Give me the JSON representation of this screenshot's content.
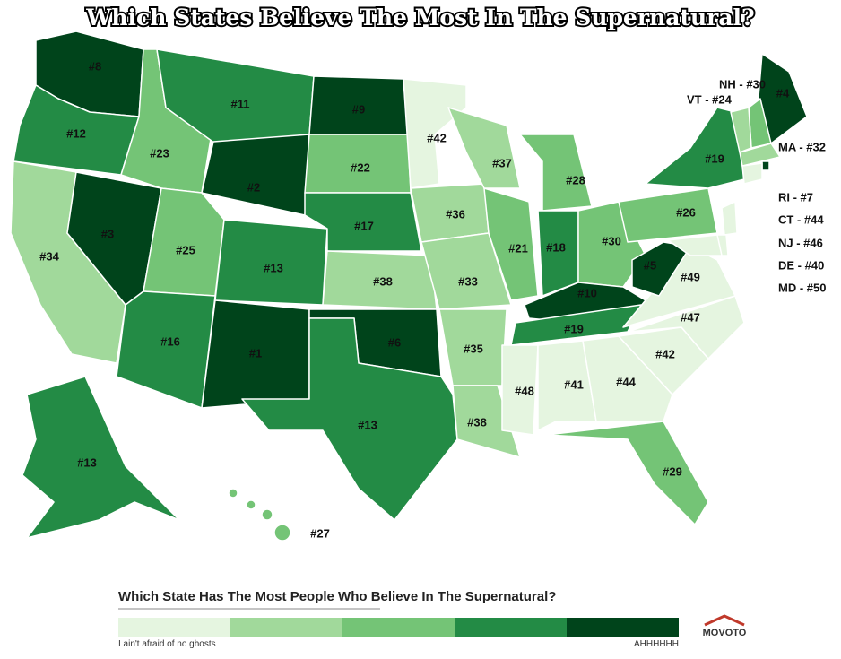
{
  "title": "Which States Believe The Most In The Supernatural?",
  "states": [
    {
      "label": "#8",
      "color": "#00441b"
    },
    {
      "label": "#12",
      "color": "#238b45"
    },
    {
      "label": "#34",
      "color": "#a1d99b"
    },
    {
      "label": "#3",
      "color": "#00441b"
    },
    {
      "label": "#23",
      "color": "#74c476"
    },
    {
      "label": "#11",
      "color": "#238b45"
    },
    {
      "label": "#2",
      "color": "#00441b"
    },
    {
      "label": "#25",
      "color": "#74c476"
    },
    {
      "label": "#13",
      "color": "#238b45"
    },
    {
      "label": "#16",
      "color": "#238b45"
    },
    {
      "label": "#1",
      "color": "#00441b"
    },
    {
      "label": "#9",
      "color": "#00441b"
    },
    {
      "label": "#22",
      "color": "#74c476"
    },
    {
      "label": "#17",
      "color": "#238b45"
    },
    {
      "label": "#38",
      "color": "#a1d99b"
    },
    {
      "label": "#6",
      "color": "#00441b"
    },
    {
      "label": "#13",
      "color": "#238b45"
    },
    {
      "label": "#42",
      "color": "#e5f5e0"
    },
    {
      "label": "#36",
      "color": "#a1d99b"
    },
    {
      "label": "#33",
      "color": "#a1d99b"
    },
    {
      "label": "#35",
      "color": "#a1d99b"
    },
    {
      "label": "#38",
      "color": "#a1d99b"
    },
    {
      "label": "#37",
      "color": "#a1d99b"
    },
    {
      "label": "#21",
      "color": "#74c476"
    },
    {
      "label": "#28",
      "color": "#74c476"
    },
    {
      "label": "#18",
      "color": "#238b45"
    },
    {
      "label": "#30",
      "color": "#74c476"
    },
    {
      "label": "#10",
      "color": "#00441b"
    },
    {
      "label": "#19",
      "color": "#238b45"
    },
    {
      "label": "#48",
      "color": "#e5f5e0"
    },
    {
      "label": "#41",
      "color": "#e5f5e0"
    },
    {
      "label": "#44",
      "color": "#e5f5e0"
    },
    {
      "label": "#29",
      "color": "#74c476"
    },
    {
      "label": "#42",
      "color": "#e5f5e0"
    },
    {
      "label": "#47",
      "color": "#e5f5e0"
    },
    {
      "label": "#49",
      "color": "#e5f5e0"
    },
    {
      "label": "#5",
      "color": "#00441b"
    },
    {
      "label": "#26",
      "color": "#74c476"
    },
    {
      "label": "#19",
      "color": "#238b45"
    },
    {
      "label": "#4",
      "color": "#00441b"
    },
    {
      "label": "#13",
      "color": "#238b45"
    },
    {
      "label": "#27",
      "color": "#74c476"
    }
  ],
  "callouts": [
    {
      "label": "NH - #30",
      "color": "#74c476"
    },
    {
      "label": "VT - #24",
      "color": "#a1d99b"
    },
    {
      "label": "MA - #32",
      "color": "#a1d99b"
    },
    {
      "label": "RI - #7",
      "color": "#00441b"
    },
    {
      "label": "CT - #44",
      "color": "#e5f5e0"
    },
    {
      "label": "NJ - #46",
      "color": "#e5f5e0"
    },
    {
      "label": "DE - #40",
      "color": "#e5f5e0"
    },
    {
      "label": "MD - #50",
      "color": "#e5f5e0"
    }
  ],
  "legend": {
    "title": "Which State Has The Most People Who Believe In The Supernatural?",
    "colors": [
      "#e5f5e0",
      "#a1d99b",
      "#74c476",
      "#238b45",
      "#00441b"
    ],
    "low_label": "I ain't afraid of no ghosts",
    "high_label": "AHHHHHH"
  },
  "logo": "MOVOTO"
}
